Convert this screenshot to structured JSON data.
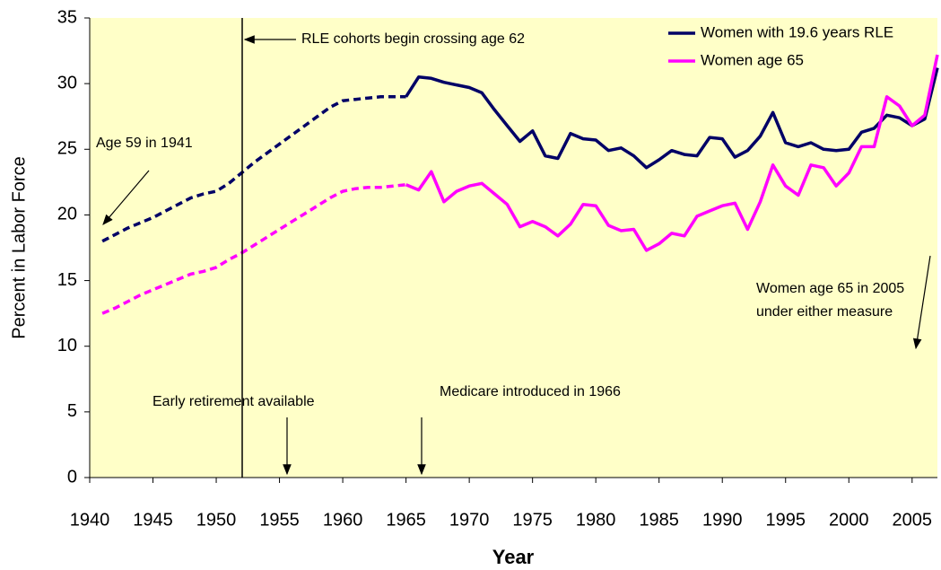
{
  "chart_data": {
    "type": "line",
    "y_label": "Percent in Labor Force",
    "x_label": "Year",
    "x": [
      1941,
      1942,
      1943,
      1944,
      1945,
      1946,
      1947,
      1948,
      1949,
      1950,
      1951,
      1952,
      1953,
      1954,
      1955,
      1956,
      1957,
      1958,
      1959,
      1960,
      1961,
      1962,
      1963,
      1964,
      1965,
      1966,
      1967,
      1968,
      1969,
      1970,
      1971,
      1972,
      1973,
      1974,
      1975,
      1976,
      1977,
      1978,
      1979,
      1980,
      1981,
      1982,
      1983,
      1984,
      1985,
      1986,
      1987,
      1988,
      1989,
      1990,
      1991,
      1992,
      1993,
      1994,
      1995,
      1996,
      1997,
      1998,
      1999,
      2000,
      2001,
      2002,
      2003,
      2004,
      2005,
      2006,
      2007
    ],
    "series": [
      {
        "name": "Women with 19.6 years RLE",
        "color": "#000066",
        "values": [
          18.0,
          18.5,
          19.0,
          19.4,
          19.8,
          20.3,
          20.8,
          21.3,
          21.6,
          21.8,
          22.4,
          23.2,
          24.0,
          24.7,
          25.4,
          26.1,
          26.8,
          27.5,
          28.2,
          28.7,
          28.8,
          28.9,
          29.0,
          29.0,
          29.0,
          30.5,
          30.4,
          30.1,
          29.9,
          29.7,
          29.3,
          28.0,
          26.8,
          25.6,
          26.4,
          24.5,
          24.3,
          26.2,
          25.8,
          25.7,
          24.9,
          25.1,
          24.5,
          23.6,
          24.2,
          24.9,
          24.6,
          24.5,
          25.9,
          25.8,
          24.4,
          24.9,
          26.0,
          27.8,
          25.5,
          25.2,
          25.5,
          25.0,
          24.9,
          25.0,
          26.3,
          26.6,
          27.6,
          27.4,
          26.8,
          27.3,
          31.2
        ]
      },
      {
        "name": "Women age 65",
        "color": "#ff00ff",
        "values": [
          12.5,
          12.9,
          13.4,
          13.9,
          14.3,
          14.7,
          15.1,
          15.5,
          15.7,
          16.0,
          16.6,
          17.1,
          17.7,
          18.3,
          18.9,
          19.5,
          20.1,
          20.7,
          21.3,
          21.8,
          22.0,
          22.1,
          22.1,
          22.2,
          22.3,
          21.9,
          23.3,
          21.0,
          21.8,
          22.2,
          22.4,
          21.6,
          20.8,
          19.1,
          19.5,
          19.1,
          18.4,
          19.3,
          20.8,
          20.7,
          19.2,
          18.8,
          18.9,
          17.3,
          17.8,
          18.6,
          18.4,
          19.9,
          20.3,
          20.7,
          20.9,
          18.9,
          21.0,
          23.8,
          22.2,
          21.5,
          23.8,
          23.6,
          22.2,
          23.2,
          25.2,
          25.2,
          29.0,
          28.3,
          26.8,
          27.6,
          32.2
        ]
      }
    ],
    "dashed_until": 1965,
    "xlim": [
      1940,
      2007
    ],
    "xticks": [
      1940,
      1945,
      1950,
      1955,
      1960,
      1965,
      1970,
      1975,
      1980,
      1985,
      1990,
      1995,
      2000,
      2005
    ],
    "ylim": [
      0,
      35
    ],
    "yticks": [
      0,
      5,
      10,
      15,
      20,
      25,
      30,
      35
    ],
    "grid": false,
    "legend": "upper right",
    "background": "#ffffc8",
    "annotations": [
      "RLE cohorts begin crossing age 62",
      "Age 59 in 1941",
      "Women age 65 in 2005",
      "under either measure",
      "Early retirement available",
      "Medicare introduced in 1966"
    ]
  }
}
